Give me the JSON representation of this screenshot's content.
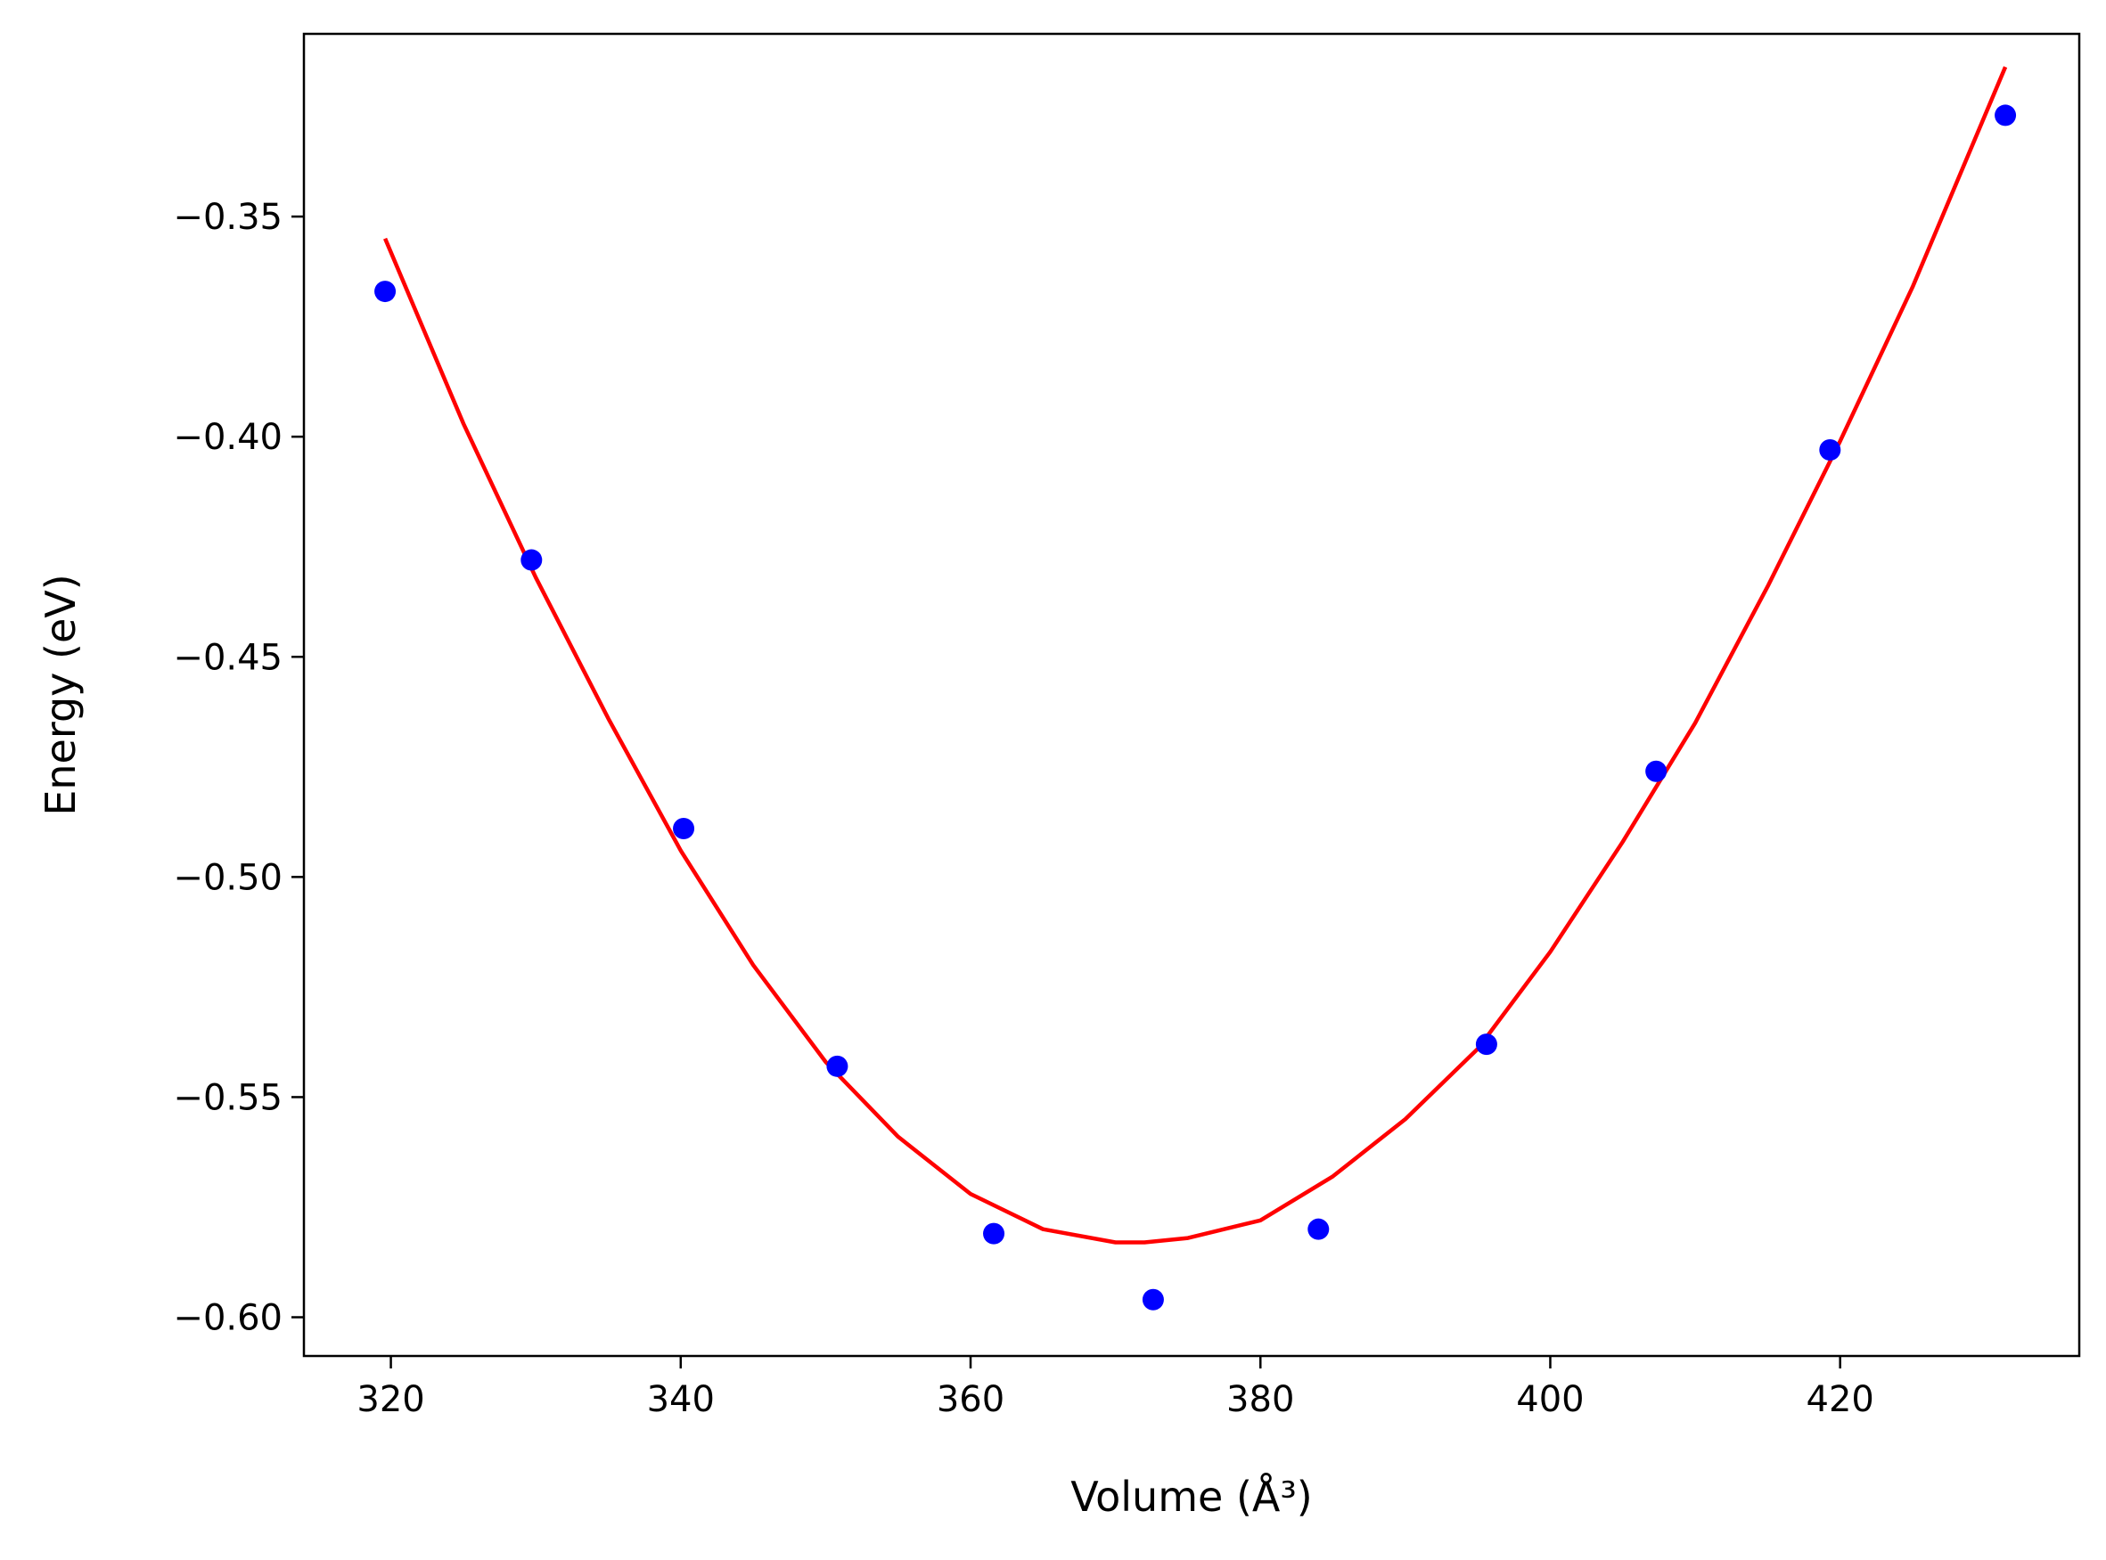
{
  "chart_data": {
    "type": "scatter",
    "xlabel": "Volume (Å³)",
    "ylabel": "Energy (eV)",
    "xlim": [
      314,
      436.5
    ],
    "ylim": [
      -0.6088,
      -0.3085
    ],
    "x_ticks": [
      320,
      340,
      360,
      380,
      400,
      420
    ],
    "x_tick_labels": [
      "320",
      "340",
      "360",
      "380",
      "400",
      "420"
    ],
    "y_ticks": [
      -0.6,
      -0.55,
      -0.5,
      -0.45,
      -0.4,
      -0.35
    ],
    "y_tick_labels": [
      "−0.60",
      "−0.55",
      "−0.50",
      "−0.45",
      "−0.40",
      "−0.35"
    ],
    "grid": false,
    "series": [
      {
        "kind": "points",
        "color": "#0000ff",
        "x": [
          319.6,
          329.7,
          340.2,
          350.8,
          361.6,
          372.6,
          384.0,
          395.6,
          407.3,
          419.3,
          431.4
        ],
        "y": [
          -0.367,
          -0.428,
          -0.489,
          -0.543,
          -0.581,
          -0.596,
          -0.58,
          -0.538,
          -0.476,
          -0.403,
          -0.327
        ]
      },
      {
        "kind": "fit-curve",
        "color": "#ff0000",
        "x": [
          319.6,
          325,
          330,
          335,
          340,
          345,
          350,
          355,
          360,
          365,
          370,
          372,
          375,
          380,
          385,
          390,
          395,
          400,
          405,
          410,
          415,
          420,
          425,
          431.4
        ],
        "y": [
          -0.355,
          -0.397,
          -0.432,
          -0.464,
          -0.494,
          -0.52,
          -0.542,
          -0.559,
          -0.572,
          -0.58,
          -0.583,
          -0.583,
          -0.582,
          -0.578,
          -0.568,
          -0.555,
          -0.539,
          -0.517,
          -0.492,
          -0.465,
          -0.434,
          -0.401,
          -0.366,
          -0.316
        ]
      }
    ]
  }
}
